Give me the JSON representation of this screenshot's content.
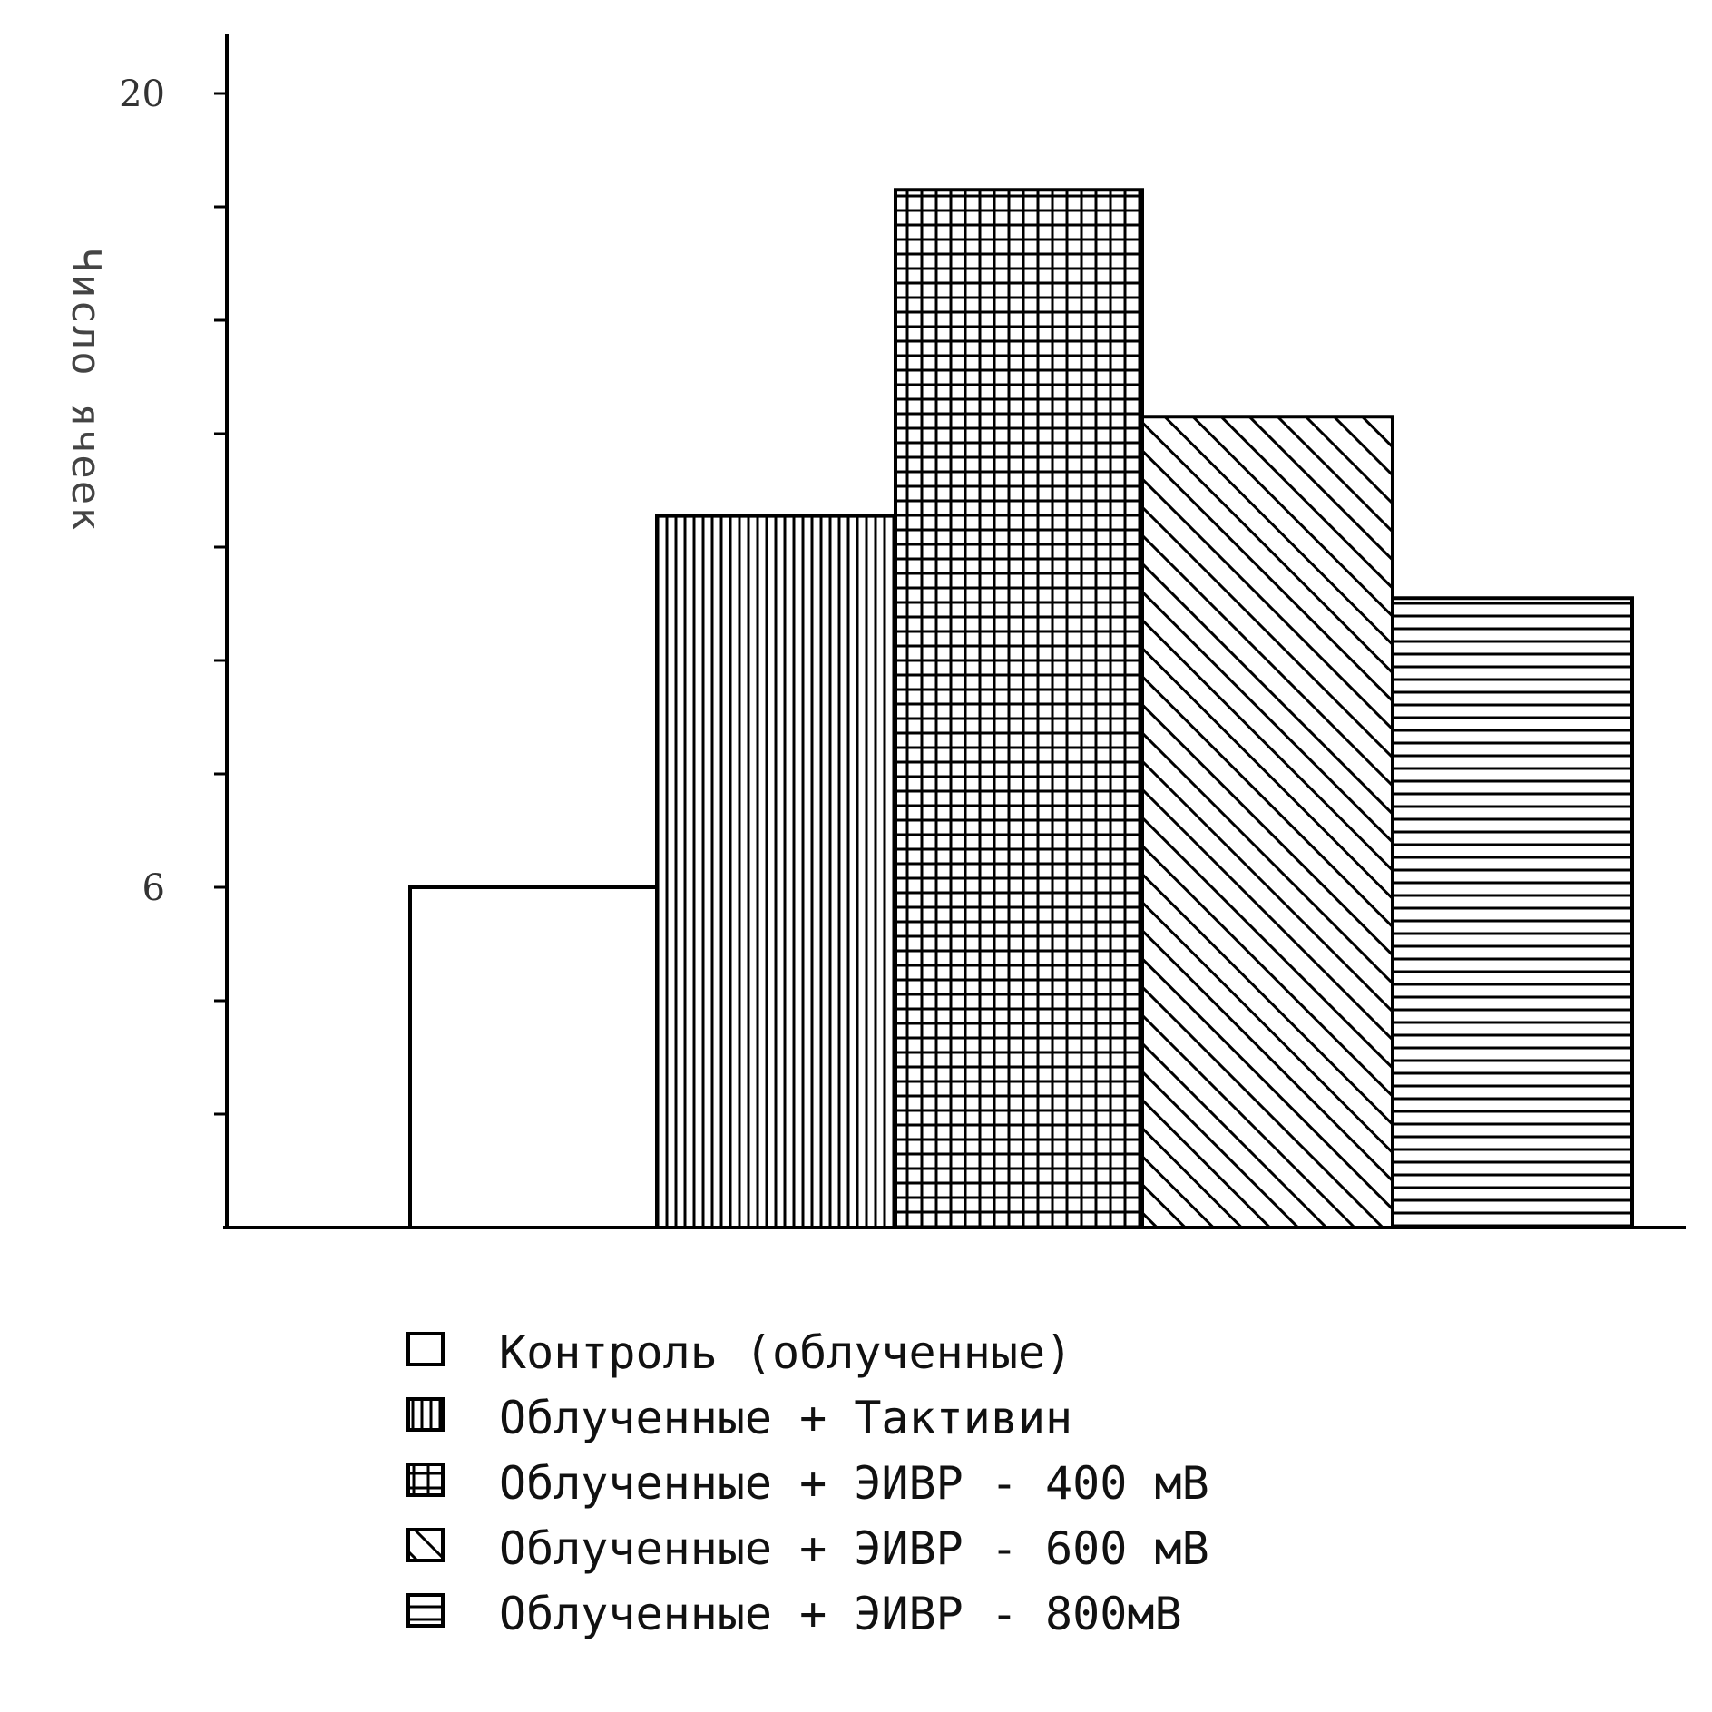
{
  "chart_data": {
    "type": "bar",
    "title": "",
    "xlabel": "",
    "ylabel": "Число ячеек",
    "categories": [
      "Контроль (облученные)",
      "Облученные + Тактивин",
      "Облученные + ЭИВР - 400 мВ",
      "Облученные + ЭИВР - 600 мВ",
      "Облученные + ЭИВР - 800мВ"
    ],
    "values": [
      6,
      12.55,
      18.3,
      14.3,
      11.1
    ],
    "ylim": [
      0,
      21
    ],
    "y_minor_ticks": [
      2,
      4,
      6,
      8,
      10,
      12,
      14,
      16,
      18,
      20
    ],
    "y_tick_labels": [
      {
        "value": 6,
        "label": "6"
      },
      {
        "value": 20,
        "label": "20"
      }
    ],
    "patterns": [
      "none",
      "vertical",
      "grid",
      "diagonal",
      "horizontal"
    ],
    "legend": {
      "placement": "bottom",
      "entries": [
        {
          "label": "Контроль (облученные)",
          "pattern": "none"
        },
        {
          "label": "Облученные + Тактивин",
          "pattern": "vertical"
        },
        {
          "label": "Облученные + ЭИВР - 400 мВ",
          "pattern": "grid"
        },
        {
          "label": "Облученные + ЭИВР - 600 мВ",
          "pattern": "diagonal"
        },
        {
          "label": "Облученные + ЭИВР - 800мВ",
          "pattern": "horizontal"
        }
      ]
    },
    "grid": false,
    "colors": {
      "stroke": "#000000",
      "background": "#ffffff"
    }
  }
}
